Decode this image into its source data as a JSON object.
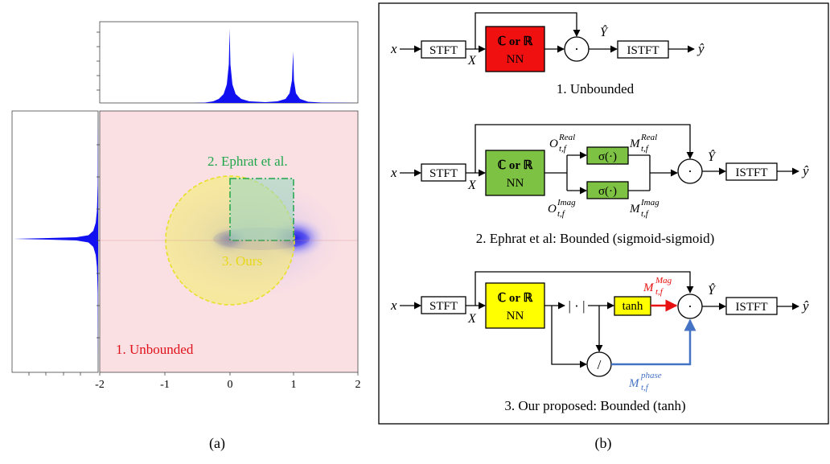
{
  "panel_a": {
    "caption": "(a)",
    "x_ticks": [
      "-2",
      "-1",
      "0",
      "1",
      "2"
    ],
    "regions": {
      "unbounded": "1. Unbounded",
      "ephrat": "2. Ephrat et al.",
      "ours": "3. Ours"
    },
    "colors": {
      "unbounded": "#e0101a",
      "ephrat": "#1fa64a",
      "ours": "#e8e02a",
      "distribution": "#1a1aff",
      "background": "#fbe0e3"
    }
  },
  "panel_b": {
    "caption": "(b)",
    "labels": {
      "x": "x",
      "X": "X",
      "Y_hat": "Ŷ",
      "y_hat": "ŷ",
      "stft": "STFT",
      "istft": "ISTFT",
      "nn_top": "ℂ or ℝ",
      "nn_bottom": "NN",
      "mult": "·",
      "sigma": "σ(·)",
      "abs": "| · |",
      "div": "/",
      "tanh": "tanh",
      "o_real_base": "O",
      "o_real_sup": "Real",
      "o_imag_base": "O",
      "o_imag_sup": "Imag",
      "m_real_base": "M",
      "m_real_sup": "Real",
      "m_imag_base": "M",
      "m_imag_sup": "Imag",
      "m_mag_base": "M",
      "m_mag_sup": "Mag",
      "m_phase_base": "M",
      "m_phase_sup": "phase",
      "tf_sub": "t,f"
    },
    "captions": {
      "d1": "1. Unbounded",
      "d2": "2. Ephrat et al:  Bounded (sigmoid-sigmoid)",
      "d3": "3. Our proposed: Bounded (tanh)"
    },
    "colors": {
      "nn1": "#f01010",
      "nn2": "#7dc242",
      "sigma": "#7dc242",
      "nn3": "#ffff00",
      "tanh": "#ffff00",
      "mag_arrow": "#e81010",
      "phase_arrow": "#4472c4"
    }
  }
}
